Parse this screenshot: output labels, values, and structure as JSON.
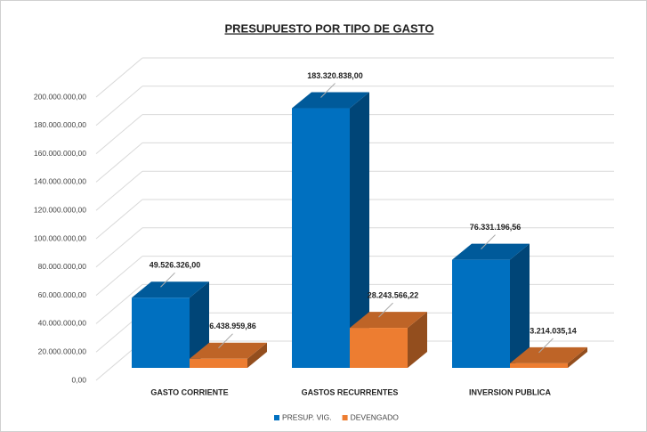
{
  "chart_data": {
    "type": "bar3d",
    "title": "PRESUPUESTO POR TIPO DE GASTO",
    "categories": [
      "GASTO CORRIENTE",
      "GASTOS RECURRENTES",
      "INVERSION PUBLICA"
    ],
    "series": [
      {
        "name": "PRESUP. VIG.",
        "color": "#0070c0",
        "values": [
          49526326.0,
          183320838.0,
          76331196.56
        ],
        "value_labels": [
          "49.526.326,00",
          "183.320.838,00",
          "76.331.196,56"
        ]
      },
      {
        "name": "DEVENGADO",
        "color": "#ed7d31",
        "values": [
          6438959.86,
          28243566.22,
          3214035.14
        ],
        "value_labels": [
          "6.438.959,86",
          "28.243.566,22",
          "3.214.035,14"
        ]
      }
    ],
    "ylim": [
      0,
      200000000
    ],
    "yticks": [
      {
        "value": 0,
        "label": "0,00"
      },
      {
        "value": 20000000,
        "label": "20.000.000,00"
      },
      {
        "value": 40000000,
        "label": "40.000.000,00"
      },
      {
        "value": 60000000,
        "label": "60.000.000,00"
      },
      {
        "value": 80000000,
        "label": "80.000.000,00"
      },
      {
        "value": 100000000,
        "label": "100.000.000,00"
      },
      {
        "value": 120000000,
        "label": "120.000.000,00"
      },
      {
        "value": 140000000,
        "label": "140.000.000,00"
      },
      {
        "value": 160000000,
        "label": "160.000.000,00"
      },
      {
        "value": 180000000,
        "label": "180.000.000,00"
      },
      {
        "value": 200000000,
        "label": "200.000.000,00"
      }
    ],
    "grid": true
  }
}
